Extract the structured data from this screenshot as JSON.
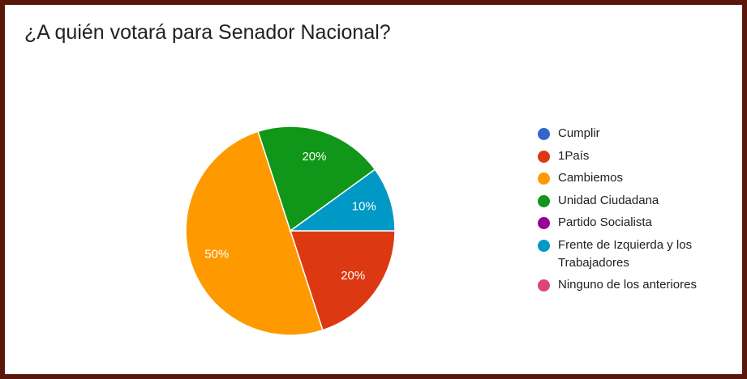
{
  "chart_data": {
    "type": "pie",
    "title": "¿A quién votará para Senador Nacional?",
    "categories": [
      "Cumplir",
      "1País",
      "Cambiemos",
      "Unidad Ciudadana",
      "Partido Socialista",
      "Frente de Izquierda y los Trabajadores",
      "Ninguno de los anteriores"
    ],
    "values": [
      0,
      20,
      50,
      20,
      0,
      10,
      0
    ],
    "value_labels": [
      null,
      "20%",
      "50%",
      "20%",
      null,
      "10%",
      null
    ],
    "colors": [
      "#3366cc",
      "#dc3912",
      "#ff9900",
      "#109618",
      "#990099",
      "#0099c6",
      "#dd4477"
    ],
    "legend": "right"
  }
}
